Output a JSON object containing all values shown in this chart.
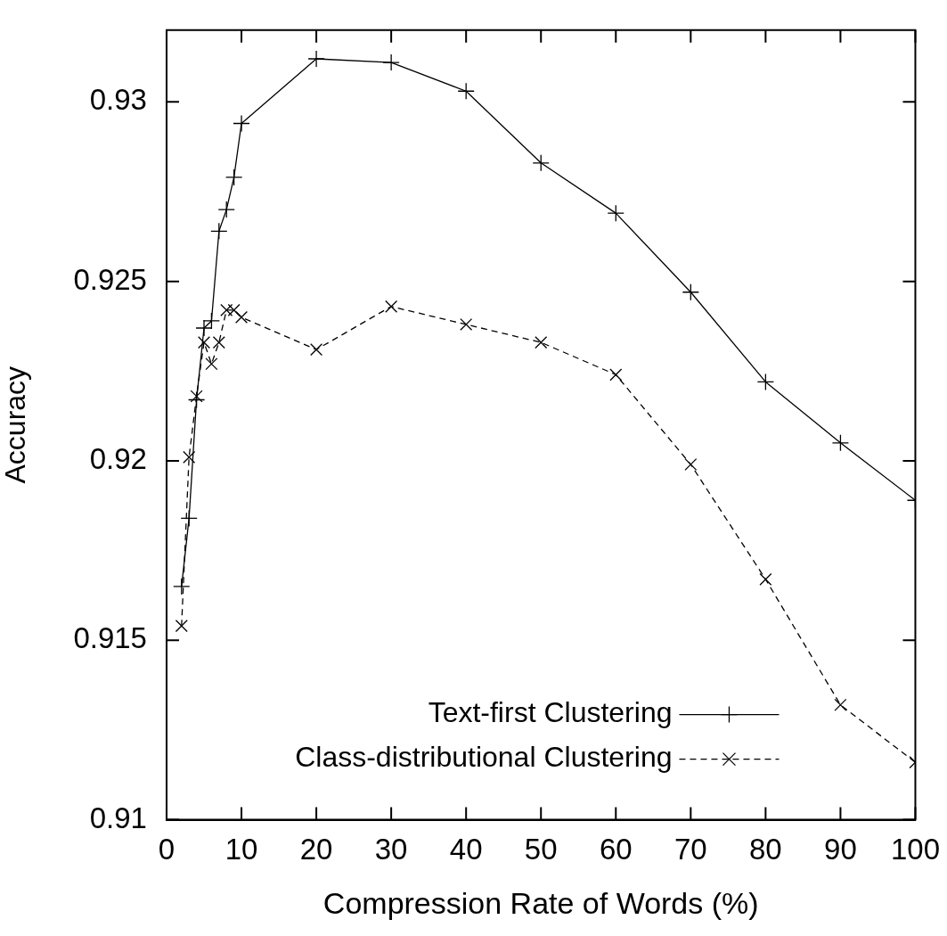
{
  "chart_data": {
    "type": "line",
    "xlabel": "Compression Rate of Words (%)",
    "ylabel": "Accuracy",
    "xlim": [
      0,
      100
    ],
    "xticks": [
      0,
      10,
      20,
      30,
      40,
      50,
      60,
      70,
      80,
      90,
      100
    ],
    "ylim": [
      0.91,
      0.932
    ],
    "yticks": [
      0.91,
      0.915,
      0.92,
      0.925,
      0.93
    ],
    "x": [
      2,
      3,
      4,
      5,
      6,
      7,
      8,
      9,
      10,
      20,
      30,
      40,
      50,
      60,
      70,
      80,
      90,
      100
    ],
    "grid": false,
    "legend": "bottom right",
    "series": [
      {
        "name": "Text-first Clustering",
        "color": "#000000",
        "marker": "plus",
        "line_style": "solid",
        "values": [
          0.9165,
          0.9184,
          0.9217,
          0.9237,
          0.9239,
          0.9264,
          0.927,
          0.9279,
          0.9294,
          0.9312,
          0.9311,
          0.9303,
          0.9283,
          0.9269,
          0.9247,
          0.9222,
          0.9205,
          0.9189
        ]
      },
      {
        "name": "Class-distributional Clustering",
        "color": "#000000",
        "marker": "cross",
        "line_style": "dashed",
        "values": [
          0.9154,
          0.9201,
          0.9218,
          0.9233,
          0.9227,
          0.9233,
          0.9242,
          0.9242,
          0.924,
          0.9231,
          0.9243,
          0.9238,
          0.9233,
          0.9224,
          0.9199,
          0.9167,
          0.9132,
          0.9116
        ]
      }
    ]
  }
}
